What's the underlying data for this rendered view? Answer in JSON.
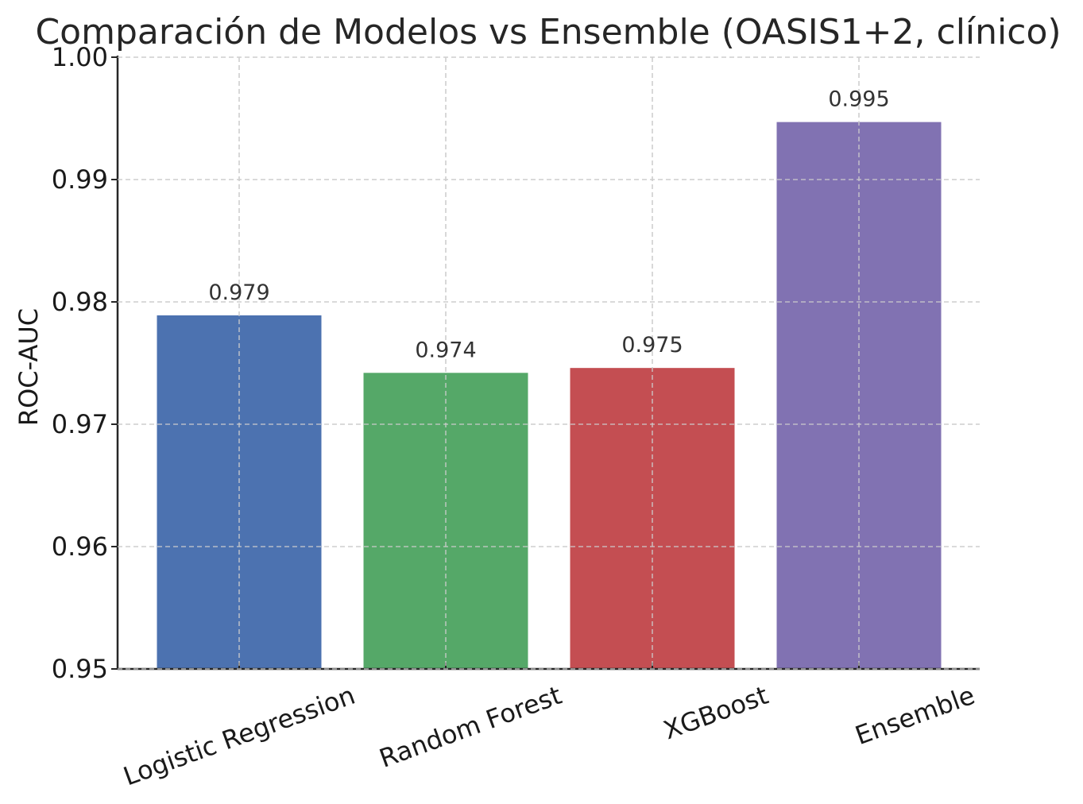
{
  "chart_data": {
    "type": "bar",
    "title": "Comparación de Modelos vs Ensemble (OASIS1+2, clínico)",
    "xlabel": "",
    "ylabel": "ROC-AUC",
    "categories": [
      "Logistic Regression",
      "Random Forest",
      "XGBoost",
      "Ensemble"
    ],
    "values": [
      0.9789,
      0.9742,
      0.9746,
      0.9947
    ],
    "value_labels": [
      "0.979",
      "0.974",
      "0.975",
      "0.995"
    ],
    "colors": [
      "#4c72b0",
      "#55a868",
      "#c44e52",
      "#8172b2"
    ],
    "ylim": [
      0.95,
      1.0
    ],
    "yticks": [
      0.95,
      0.96,
      0.97,
      0.98,
      0.99,
      1.0
    ],
    "ytick_labels": [
      "0.95",
      "0.96",
      "0.97",
      "0.98",
      "0.99",
      "1.00"
    ],
    "grid": true,
    "legend": "none"
  }
}
